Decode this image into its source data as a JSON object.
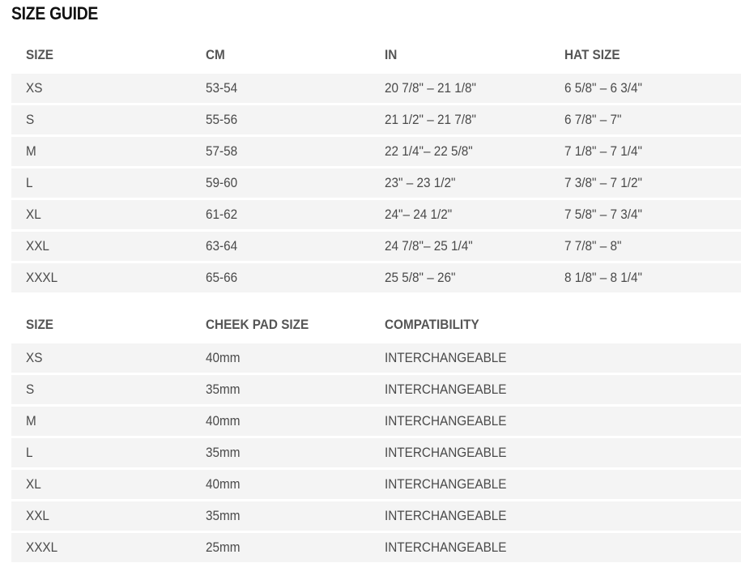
{
  "title": "SIZE GUIDE",
  "table1": {
    "headers": [
      "SIZE",
      "CM",
      "IN",
      "HAT SIZE"
    ],
    "rows": [
      [
        "XS",
        "53-54",
        "20 7/8\" – 21 1/8\"",
        "6 5/8\" – 6 3/4\""
      ],
      [
        "S",
        "55-56",
        "21 1/2\" – 21 7/8\"",
        "6 7/8\" – 7\""
      ],
      [
        "M",
        "57-58",
        "22 1/4\"– 22 5/8\"",
        "7 1/8\" – 7 1/4\""
      ],
      [
        "L",
        "59-60",
        "23\" – 23 1/2\"",
        "7 3/8\" – 7 1/2\""
      ],
      [
        "XL",
        "61-62",
        "24\"– 24 1/2\"",
        "7 5/8\" – 7 3/4\""
      ],
      [
        "XXL",
        "63-64",
        "24 7/8\"– 25 1/4\"",
        "7 7/8\" – 8\""
      ],
      [
        "XXXL",
        "65-66",
        "25 5/8\" – 26\"",
        "8 1/8\" – 8 1/4\""
      ]
    ]
  },
  "table2": {
    "headers": [
      "SIZE",
      "CHEEK PAD SIZE",
      "COMPATIBILITY",
      ""
    ],
    "rows": [
      [
        "XS",
        "40mm",
        "INTERCHANGEABLE",
        ""
      ],
      [
        "S",
        "35mm",
        "INTERCHANGEABLE",
        ""
      ],
      [
        "M",
        "40mm",
        "INTERCHANGEABLE",
        ""
      ],
      [
        "L",
        "35mm",
        "INTERCHANGEABLE",
        ""
      ],
      [
        "XL",
        "40mm",
        "INTERCHANGEABLE",
        ""
      ],
      [
        "XXL",
        "35mm",
        "INTERCHANGEABLE",
        ""
      ],
      [
        "XXXL",
        "25mm",
        "INTERCHANGEABLE",
        ""
      ]
    ]
  }
}
